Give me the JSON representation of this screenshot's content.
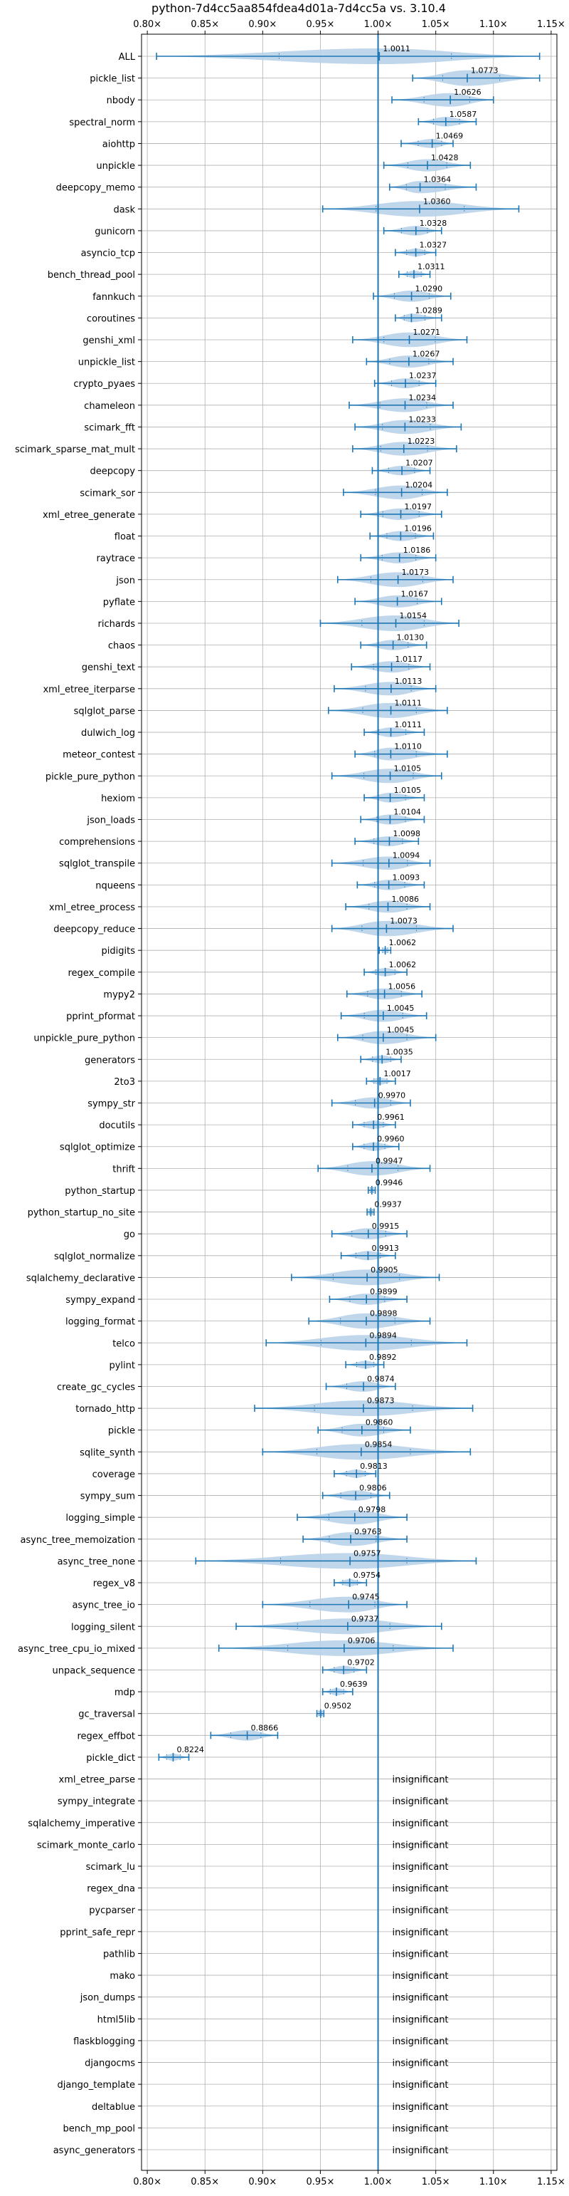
{
  "chart_data": {
    "type": "violin",
    "title": "python-7d4cc5aa854fdea4d01a-7d4cc5a vs. 3.10.4",
    "xlabel": "",
    "ylabel": "",
    "xlim": [
      0.795,
      1.155
    ],
    "xticks": [
      {
        "value": 0.8,
        "label": "0.80×"
      },
      {
        "value": 0.85,
        "label": "0.85×"
      },
      {
        "value": 0.9,
        "label": "0.90×"
      },
      {
        "value": 0.95,
        "label": "0.95×"
      },
      {
        "value": 1.0,
        "label": "1.00×"
      },
      {
        "value": 1.05,
        "label": "1.05×"
      },
      {
        "value": 1.1,
        "label": "1.10×"
      },
      {
        "value": 1.15,
        "label": "1.15×"
      }
    ],
    "grid": true,
    "insignificant_label": "insignificant",
    "colors": {
      "body": "#b9d2e8",
      "line": "#1f77b4",
      "grid": "#b0b0b0",
      "ref": "#1f77b4"
    },
    "benchmarks": [
      {
        "name": "ALL",
        "label": "1.0011",
        "median": 1.0011,
        "min": 0.808,
        "max": 1.14
      },
      {
        "name": "pickle_list",
        "label": "1.0773",
        "median": 1.0773,
        "min": 1.03,
        "max": 1.14
      },
      {
        "name": "nbody",
        "label": "1.0626",
        "median": 1.0626,
        "min": 1.012,
        "max": 1.1
      },
      {
        "name": "spectral_norm",
        "label": "1.0587",
        "median": 1.0587,
        "min": 1.035,
        "max": 1.085
      },
      {
        "name": "aiohttp",
        "label": "1.0469",
        "median": 1.0469,
        "min": 1.02,
        "max": 1.065
      },
      {
        "name": "unpickle",
        "label": "1.0428",
        "median": 1.0428,
        "min": 1.005,
        "max": 1.08
      },
      {
        "name": "deepcopy_memo",
        "label": "1.0364",
        "median": 1.0364,
        "min": 1.01,
        "max": 1.085
      },
      {
        "name": "dask",
        "label": "1.0360",
        "median": 1.036,
        "min": 0.952,
        "max": 1.122
      },
      {
        "name": "gunicorn",
        "label": "1.0328",
        "median": 1.0328,
        "min": 1.005,
        "max": 1.055
      },
      {
        "name": "asyncio_tcp",
        "label": "1.0327",
        "median": 1.0327,
        "min": 1.015,
        "max": 1.05
      },
      {
        "name": "bench_thread_pool",
        "label": "1.0311",
        "median": 1.0311,
        "min": 1.018,
        "max": 1.045
      },
      {
        "name": "fannkuch",
        "label": "1.0290",
        "median": 1.029,
        "min": 0.996,
        "max": 1.063
      },
      {
        "name": "coroutines",
        "label": "1.0289",
        "median": 1.0289,
        "min": 1.015,
        "max": 1.055
      },
      {
        "name": "genshi_xml",
        "label": "1.0271",
        "median": 1.0271,
        "min": 0.978,
        "max": 1.077
      },
      {
        "name": "unpickle_list",
        "label": "1.0267",
        "median": 1.0267,
        "min": 0.99,
        "max": 1.065
      },
      {
        "name": "crypto_pyaes",
        "label": "1.0237",
        "median": 1.0237,
        "min": 0.997,
        "max": 1.05
      },
      {
        "name": "chameleon",
        "label": "1.0234",
        "median": 1.0234,
        "min": 0.975,
        "max": 1.065
      },
      {
        "name": "scimark_fft",
        "label": "1.0233",
        "median": 1.0233,
        "min": 0.98,
        "max": 1.072
      },
      {
        "name": "scimark_sparse_mat_mult",
        "label": "1.0223",
        "median": 1.0223,
        "min": 0.978,
        "max": 1.068
      },
      {
        "name": "deepcopy",
        "label": "1.0207",
        "median": 1.0207,
        "min": 0.995,
        "max": 1.045
      },
      {
        "name": "scimark_sor",
        "label": "1.0204",
        "median": 1.0204,
        "min": 0.97,
        "max": 1.06
      },
      {
        "name": "xml_etree_generate",
        "label": "1.0197",
        "median": 1.0197,
        "min": 0.985,
        "max": 1.055
      },
      {
        "name": "float",
        "label": "1.0196",
        "median": 1.0196,
        "min": 0.993,
        "max": 1.048
      },
      {
        "name": "raytrace",
        "label": "1.0186",
        "median": 1.0186,
        "min": 0.985,
        "max": 1.05
      },
      {
        "name": "json",
        "label": "1.0173",
        "median": 1.0173,
        "min": 0.965,
        "max": 1.065
      },
      {
        "name": "pyflate",
        "label": "1.0167",
        "median": 1.0167,
        "min": 0.98,
        "max": 1.055
      },
      {
        "name": "richards",
        "label": "1.0154",
        "median": 1.0154,
        "min": 0.95,
        "max": 1.07
      },
      {
        "name": "chaos",
        "label": "1.0130",
        "median": 1.013,
        "min": 0.985,
        "max": 1.042
      },
      {
        "name": "genshi_text",
        "label": "1.0117",
        "median": 1.0117,
        "min": 0.977,
        "max": 1.045
      },
      {
        "name": "xml_etree_iterparse",
        "label": "1.0113",
        "median": 1.0113,
        "min": 0.962,
        "max": 1.05
      },
      {
        "name": "sqlglot_parse",
        "label": "1.0111",
        "median": 1.0111,
        "min": 0.957,
        "max": 1.06
      },
      {
        "name": "dulwich_log",
        "label": "1.0111",
        "median": 1.0111,
        "min": 0.988,
        "max": 1.04
      },
      {
        "name": "meteor_contest",
        "label": "1.0110",
        "median": 1.011,
        "min": 0.98,
        "max": 1.06
      },
      {
        "name": "pickle_pure_python",
        "label": "1.0105",
        "median": 1.0105,
        "min": 0.96,
        "max": 1.055
      },
      {
        "name": "hexiom",
        "label": "1.0105",
        "median": 1.0105,
        "min": 0.988,
        "max": 1.04
      },
      {
        "name": "json_loads",
        "label": "1.0104",
        "median": 1.0104,
        "min": 0.985,
        "max": 1.04
      },
      {
        "name": "comprehensions",
        "label": "1.0098",
        "median": 1.0098,
        "min": 0.98,
        "max": 1.035
      },
      {
        "name": "sqlglot_transpile",
        "label": "1.0094",
        "median": 1.0094,
        "min": 0.96,
        "max": 1.045
      },
      {
        "name": "nqueens",
        "label": "1.0093",
        "median": 1.0093,
        "min": 0.982,
        "max": 1.04
      },
      {
        "name": "xml_etree_process",
        "label": "1.0086",
        "median": 1.0086,
        "min": 0.972,
        "max": 1.045
      },
      {
        "name": "deepcopy_reduce",
        "label": "1.0073",
        "median": 1.0073,
        "min": 0.96,
        "max": 1.065
      },
      {
        "name": "pidigits",
        "label": "1.0062",
        "median": 1.0062,
        "min": 1.001,
        "max": 1.011
      },
      {
        "name": "regex_compile",
        "label": "1.0062",
        "median": 1.0062,
        "min": 0.988,
        "max": 1.025
      },
      {
        "name": "mypy2",
        "label": "1.0056",
        "median": 1.0056,
        "min": 0.973,
        "max": 1.038
      },
      {
        "name": "pprint_pformat",
        "label": "1.0045",
        "median": 1.0045,
        "min": 0.968,
        "max": 1.042
      },
      {
        "name": "unpickle_pure_python",
        "label": "1.0045",
        "median": 1.0045,
        "min": 0.965,
        "max": 1.05
      },
      {
        "name": "generators",
        "label": "1.0035",
        "median": 1.0035,
        "min": 0.985,
        "max": 1.02
      },
      {
        "name": "2to3",
        "label": "1.0017",
        "median": 1.0017,
        "min": 0.99,
        "max": 1.015
      },
      {
        "name": "sympy_str",
        "label": "0.9970",
        "median": 0.997,
        "min": 0.96,
        "max": 1.028
      },
      {
        "name": "docutils",
        "label": "0.9961",
        "median": 0.9961,
        "min": 0.978,
        "max": 1.015
      },
      {
        "name": "sqlglot_optimize",
        "label": "0.9960",
        "median": 0.996,
        "min": 0.978,
        "max": 1.018
      },
      {
        "name": "thrift",
        "label": "0.9947",
        "median": 0.9947,
        "min": 0.948,
        "max": 1.045
      },
      {
        "name": "python_startup",
        "label": "0.9946",
        "median": 0.9946,
        "min": 0.9915,
        "max": 0.9975
      },
      {
        "name": "python_startup_no_site",
        "label": "0.9937",
        "median": 0.9937,
        "min": 0.9905,
        "max": 0.9965
      },
      {
        "name": "go",
        "label": "0.9915",
        "median": 0.9915,
        "min": 0.96,
        "max": 1.025
      },
      {
        "name": "sqlglot_normalize",
        "label": "0.9913",
        "median": 0.9913,
        "min": 0.968,
        "max": 1.015
      },
      {
        "name": "sqlalchemy_declarative",
        "label": "0.9905",
        "median": 0.9905,
        "min": 0.925,
        "max": 1.053
      },
      {
        "name": "sympy_expand",
        "label": "0.9899",
        "median": 0.9899,
        "min": 0.958,
        "max": 1.025
      },
      {
        "name": "logging_format",
        "label": "0.9898",
        "median": 0.9898,
        "min": 0.94,
        "max": 1.045
      },
      {
        "name": "telco",
        "label": "0.9894",
        "median": 0.9894,
        "min": 0.903,
        "max": 1.077
      },
      {
        "name": "pylint",
        "label": "0.9892",
        "median": 0.9892,
        "min": 0.972,
        "max": 1.005
      },
      {
        "name": "create_gc_cycles",
        "label": "0.9874",
        "median": 0.9874,
        "min": 0.955,
        "max": 1.015
      },
      {
        "name": "tornado_http",
        "label": "0.9873",
        "median": 0.9873,
        "min": 0.893,
        "max": 1.082
      },
      {
        "name": "pickle",
        "label": "0.9860",
        "median": 0.986,
        "min": 0.948,
        "max": 1.028
      },
      {
        "name": "sqlite_synth",
        "label": "0.9854",
        "median": 0.9854,
        "min": 0.9,
        "max": 1.08
      },
      {
        "name": "coverage",
        "label": "0.9813",
        "median": 0.9813,
        "min": 0.962,
        "max": 0.998
      },
      {
        "name": "sympy_sum",
        "label": "0.9806",
        "median": 0.9806,
        "min": 0.952,
        "max": 1.01
      },
      {
        "name": "logging_simple",
        "label": "0.9798",
        "median": 0.9798,
        "min": 0.93,
        "max": 1.025
      },
      {
        "name": "async_tree_memoization",
        "label": "0.9763",
        "median": 0.9763,
        "min": 0.935,
        "max": 1.025
      },
      {
        "name": "async_tree_none",
        "label": "0.9757",
        "median": 0.9757,
        "min": 0.842,
        "max": 1.085
      },
      {
        "name": "regex_v8",
        "label": "0.9754",
        "median": 0.9754,
        "min": 0.962,
        "max": 0.99
      },
      {
        "name": "async_tree_io",
        "label": "0.9745",
        "median": 0.9745,
        "min": 0.9,
        "max": 1.025
      },
      {
        "name": "logging_silent",
        "label": "0.9737",
        "median": 0.9737,
        "min": 0.877,
        "max": 1.055
      },
      {
        "name": "async_tree_cpu_io_mixed",
        "label": "0.9706",
        "median": 0.9706,
        "min": 0.862,
        "max": 1.065
      },
      {
        "name": "unpack_sequence",
        "label": "0.9702",
        "median": 0.9702,
        "min": 0.952,
        "max": 0.99
      },
      {
        "name": "mdp",
        "label": "0.9639",
        "median": 0.9639,
        "min": 0.952,
        "max": 0.978
      },
      {
        "name": "gc_traversal",
        "label": "0.9502",
        "median": 0.9502,
        "min": 0.947,
        "max": 0.953
      },
      {
        "name": "regex_effbot",
        "label": "0.8866",
        "median": 0.8866,
        "min": 0.855,
        "max": 0.913
      },
      {
        "name": "pickle_dict",
        "label": "0.8224",
        "median": 0.8224,
        "min": 0.81,
        "max": 0.836
      },
      {
        "name": "xml_etree_parse",
        "insignificant": true
      },
      {
        "name": "sympy_integrate",
        "insignificant": true
      },
      {
        "name": "sqlalchemy_imperative",
        "insignificant": true
      },
      {
        "name": "scimark_monte_carlo",
        "insignificant": true
      },
      {
        "name": "scimark_lu",
        "insignificant": true
      },
      {
        "name": "regex_dna",
        "insignificant": true
      },
      {
        "name": "pycparser",
        "insignificant": true
      },
      {
        "name": "pprint_safe_repr",
        "insignificant": true
      },
      {
        "name": "pathlib",
        "insignificant": true
      },
      {
        "name": "mako",
        "insignificant": true
      },
      {
        "name": "json_dumps",
        "insignificant": true
      },
      {
        "name": "html5lib",
        "insignificant": true
      },
      {
        "name": "flaskblogging",
        "insignificant": true
      },
      {
        "name": "djangocms",
        "insignificant": true
      },
      {
        "name": "django_template",
        "insignificant": true
      },
      {
        "name": "deltablue",
        "insignificant": true
      },
      {
        "name": "bench_mp_pool",
        "insignificant": true
      },
      {
        "name": "async_generators",
        "insignificant": true
      }
    ]
  }
}
